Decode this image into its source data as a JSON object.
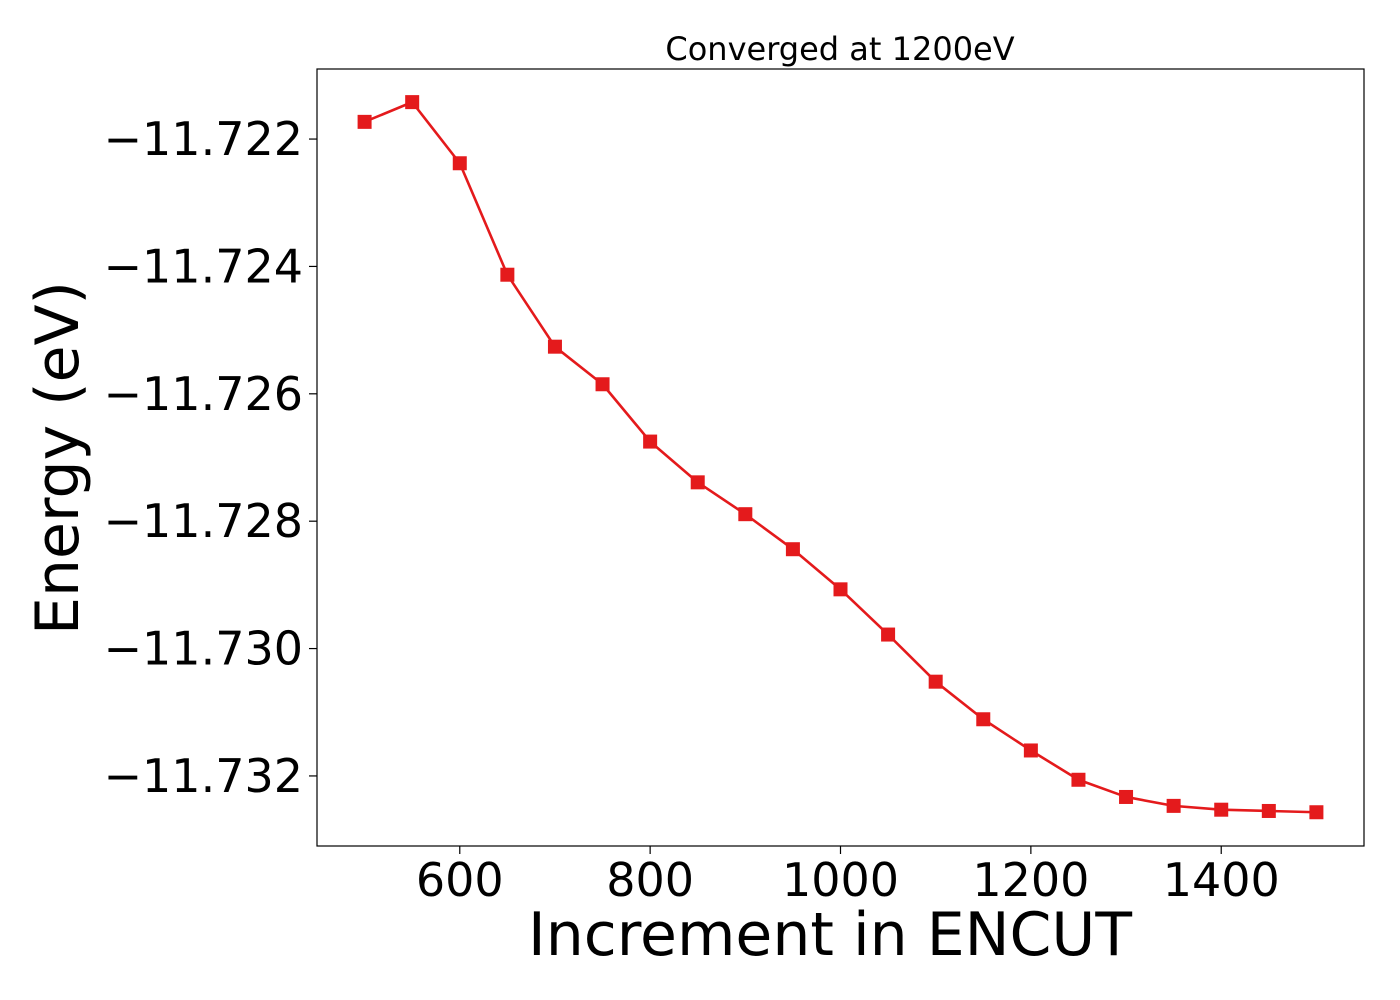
{
  "chart_data": {
    "type": "line",
    "title": "Converged at 1200eV",
    "xlabel": "Increment in ENCUT",
    "ylabel": "Energy (eV)",
    "xlim": [
      450,
      1550
    ],
    "ylim": [
      -11.7331,
      -11.7209
    ],
    "x_ticks": [
      600,
      800,
      1000,
      1200,
      1400
    ],
    "x_tick_labels": [
      "600",
      "800",
      "1000",
      "1200",
      "1400"
    ],
    "y_ticks": [
      -11.722,
      -11.724,
      -11.726,
      -11.728,
      -11.73,
      -11.732
    ],
    "y_tick_labels": [
      "−11.722",
      "−11.724",
      "−11.726",
      "−11.728",
      "−11.730",
      "−11.732"
    ],
    "grid": false,
    "legend": "none",
    "series": [
      {
        "color": "#e41a1c",
        "marker": "square",
        "x": [
          500,
          550,
          600,
          650,
          700,
          750,
          800,
          850,
          900,
          950,
          1000,
          1050,
          1100,
          1150,
          1200,
          1250,
          1300,
          1350,
          1400,
          1450,
          1500
        ],
        "y": [
          -11.72173,
          -11.72142,
          -11.72238,
          -11.72413,
          -11.72526,
          -11.72585,
          -11.72675,
          -11.72739,
          -11.72789,
          -11.72844,
          -11.72907,
          -11.72978,
          -11.73052,
          -11.73111,
          -11.7316,
          -11.73206,
          -11.73233,
          -11.73247,
          -11.73253,
          -11.73255,
          -11.73257
        ]
      }
    ]
  }
}
